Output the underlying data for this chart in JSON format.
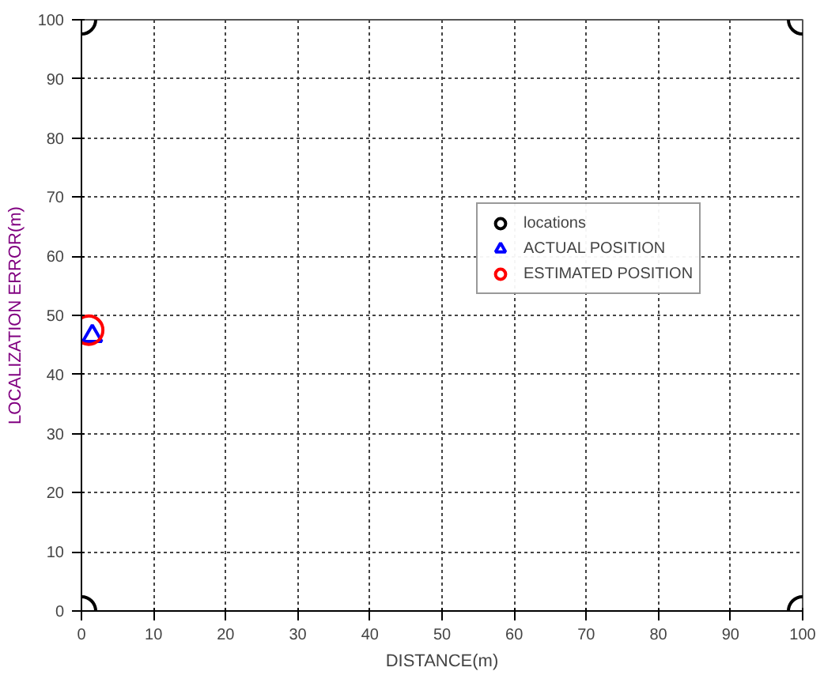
{
  "chart_data": {
    "type": "scatter",
    "xlabel": "DISTANCE(m)",
    "ylabel": "LOCALIZATION ERROR(m)",
    "xlim": [
      0,
      100
    ],
    "ylim": [
      0,
      100
    ],
    "xticks": [
      0,
      10,
      20,
      30,
      40,
      50,
      60,
      70,
      80,
      90,
      100
    ],
    "yticks": [
      0,
      10,
      20,
      30,
      40,
      50,
      60,
      70,
      80,
      90,
      100
    ],
    "grid": true,
    "legend": "right",
    "series": [
      {
        "name": "locations",
        "color": "#000000",
        "marker": "circle",
        "x": [
          0,
          0,
          100,
          100
        ],
        "values": [
          0,
          100,
          0,
          100
        ]
      },
      {
        "name": "ACTUAL POSITION",
        "color": "#0000ff",
        "marker": "triangle",
        "x": [
          1.5
        ],
        "values": [
          46.5
        ]
      },
      {
        "name": "ESTIMATED POSITION",
        "color": "#ff0000",
        "marker": "circle",
        "x": [
          1
        ],
        "values": [
          47.5
        ]
      }
    ]
  }
}
